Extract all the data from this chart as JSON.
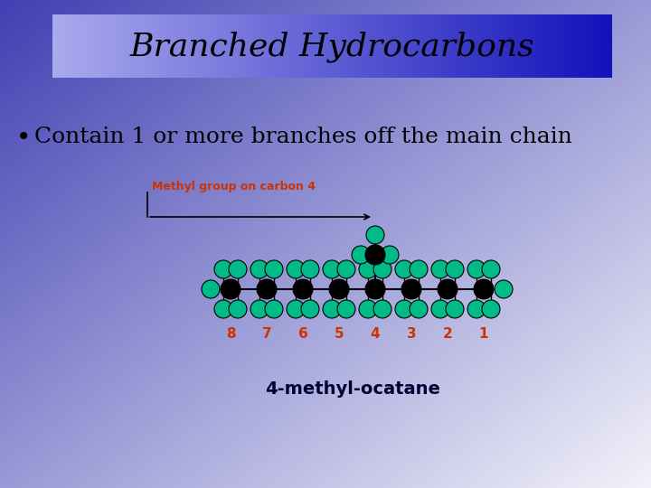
{
  "title": "Branched Hydrocarbons",
  "title_fontsize": 26,
  "bullet_text": "Contain 1 or more branches off the main chain",
  "bullet_fontsize": 18,
  "annotation_text": "Methyl group on carbon 4",
  "annotation_color": "#cc3300",
  "annotation_fontsize": 9,
  "label_text": "4-methyl-ocatane",
  "label_fontsize": 14,
  "label_color": "#000033",
  "carbon_color": "#000000",
  "hydrogen_color": "#00bb88",
  "number_color": "#cc3300",
  "number_fontsize": 11,
  "numbers": [
    "8",
    "7",
    "6",
    "5",
    "4",
    "3",
    "2",
    "1"
  ],
  "n_carbons": 8,
  "branch_idx": 4
}
